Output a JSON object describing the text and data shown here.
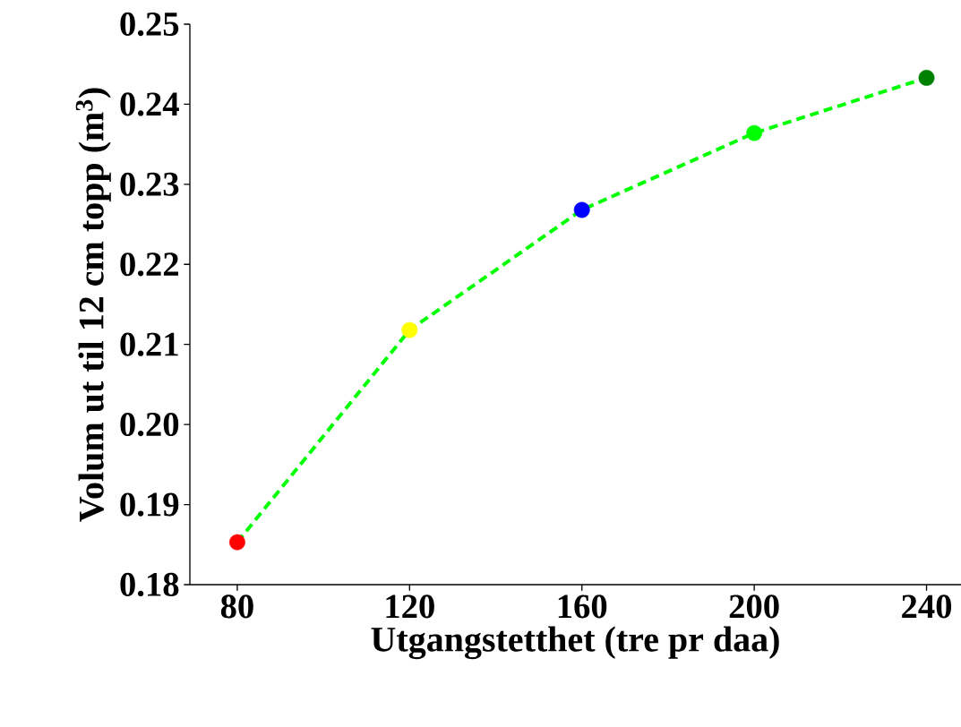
{
  "chart_data": {
    "type": "line",
    "xlabel": "Utgangstetthet (tre pr daa)",
    "ylabel": "Volum ut til 12 cm topp (m$^{3}$)",
    "x": [
      80,
      120,
      160,
      200,
      240
    ],
    "values": [
      0.1853,
      0.2118,
      0.2268,
      0.2364,
      0.2433
    ],
    "color": "#00ff00",
    "colors": [
      "#ff0000",
      "#ffff00",
      "#0000ff",
      "#00ff00",
      "#008000"
    ],
    "marker": "circle",
    "line_style": "dashed",
    "xlim": [
      69,
      248
    ],
    "xticks": [
      80,
      120,
      160,
      200,
      240
    ],
    "ylim": [
      0.18,
      0.25
    ],
    "yticks": [
      0.18,
      0.19,
      {
        "value": 0.2,
        "label": "0.20"
      },
      0.21,
      0.22,
      0.23,
      0.24,
      0.25
    ]
  }
}
